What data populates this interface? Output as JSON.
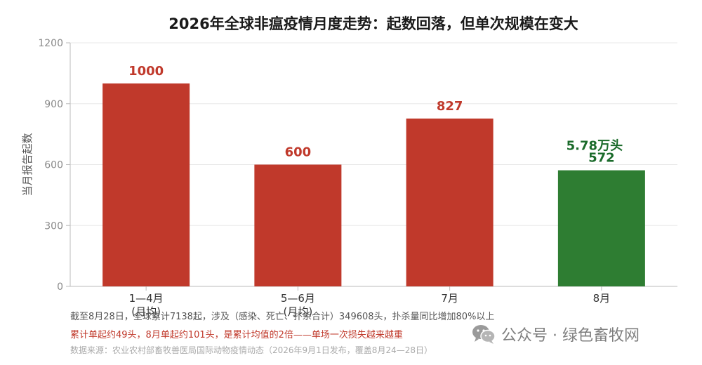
{
  "chart_data": {
    "type": "bar",
    "title": "2026年全球非瘟疫情月度走势：起数回落，但单次规模在变大",
    "ylabel": "当月报告起数",
    "xlabel": "",
    "categories": [
      "1—4月\n(月均)",
      "5—6月\n(月均)",
      "7月",
      "8月"
    ],
    "values": [
      1000,
      600,
      827,
      572
    ],
    "value_labels": [
      "1000",
      "600",
      "827",
      "572"
    ],
    "bar_colors": [
      "#c0392b",
      "#c0392b",
      "#c0392b",
      "#2e7d32"
    ],
    "extra_annotation": {
      "category": "8月",
      "text": "5.78万头",
      "color": "#1b6b2b"
    },
    "ylim": [
      0,
      1200
    ],
    "yticks": [
      0,
      300,
      600,
      900,
      1200
    ],
    "grid": true,
    "legend": "none"
  },
  "footer": {
    "line1": "截至8月28日，全球累计7138起，涉及（感染、死亡、扑杀合计）349608头，扑杀量同比增加80%以上",
    "line2": "累计单起约49头，8月单起约101头，是累计均值的2倍——单场一次损失越来越重",
    "line3": "数据来源：农业农村部畜牧兽医局国际动物疫情动态（2026年9月1日发布，覆盖8月24—28日）"
  },
  "watermark": {
    "icon": "wechat-icon",
    "text": "公众号 · 绿色畜牧网"
  },
  "colors": {
    "red": "#c0392b",
    "green": "#2e7d32",
    "grid": "#e8e8e8",
    "axis": "#bbbbbb"
  }
}
